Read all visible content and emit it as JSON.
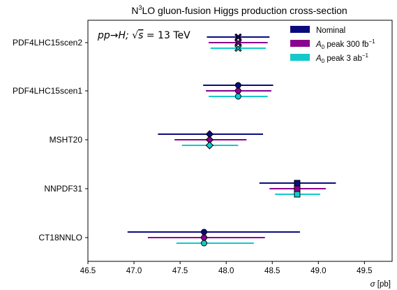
{
  "chart_data": {
    "type": "errorbar",
    "title": {
      "prefix": "N",
      "sup": "3",
      "suffix": "LO gluon-fusion Higgs production cross-section"
    },
    "annotation": {
      "pp": "pp→H; ",
      "sqrt": "√",
      "s": "s",
      "eq": " = 13 TeV"
    },
    "xlabel": {
      "sym": "σ",
      "unit": " [pb]"
    },
    "xlim": [
      46.5,
      49.8
    ],
    "xticks": [
      "46.5",
      "47.0",
      "47.5",
      "48.0",
      "48.5",
      "49.0",
      "49.5"
    ],
    "categories": [
      "PDF4LHC15scen2",
      "PDF4LHC15scen1",
      "MSHT20",
      "NNPDF31",
      "CT18NNLO"
    ],
    "markers": [
      "X",
      "o",
      "D",
      "s",
      "o"
    ],
    "legend_position": "top-right",
    "series": [
      {
        "name": "Nominal",
        "color": "#0b0b7d",
        "points": [
          {
            "value": 48.13,
            "low": 47.79,
            "high": 48.47
          },
          {
            "value": 48.13,
            "low": 47.75,
            "high": 48.51
          },
          {
            "value": 47.82,
            "low": 47.26,
            "high": 48.4
          },
          {
            "value": 48.77,
            "low": 48.36,
            "high": 49.19
          },
          {
            "value": 47.76,
            "low": 46.93,
            "high": 48.8
          }
        ]
      },
      {
        "name": {
          "prefix": "A",
          "sub": "0",
          "mid": " peak 300 fb",
          "sup": "−1"
        },
        "color": "#8a008f",
        "points": [
          {
            "value": 48.13,
            "low": 47.81,
            "high": 48.45
          },
          {
            "value": 48.13,
            "low": 47.78,
            "high": 48.49
          },
          {
            "value": 47.82,
            "low": 47.44,
            "high": 48.22
          },
          {
            "value": 48.77,
            "low": 48.47,
            "high": 49.08
          },
          {
            "value": 47.76,
            "low": 47.15,
            "high": 48.42
          }
        ]
      },
      {
        "name": {
          "prefix": "A",
          "sub": "0",
          "mid": " peak 3 ab",
          "sup": "−1"
        },
        "color": "#14c9cc",
        "points": [
          {
            "value": 48.13,
            "low": 47.83,
            "high": 48.43
          },
          {
            "value": 48.13,
            "low": 47.81,
            "high": 48.45
          },
          {
            "value": 47.82,
            "low": 47.52,
            "high": 48.13
          },
          {
            "value": 48.77,
            "low": 48.53,
            "high": 49.02
          },
          {
            "value": 47.76,
            "low": 47.46,
            "high": 48.3
          }
        ]
      }
    ]
  }
}
